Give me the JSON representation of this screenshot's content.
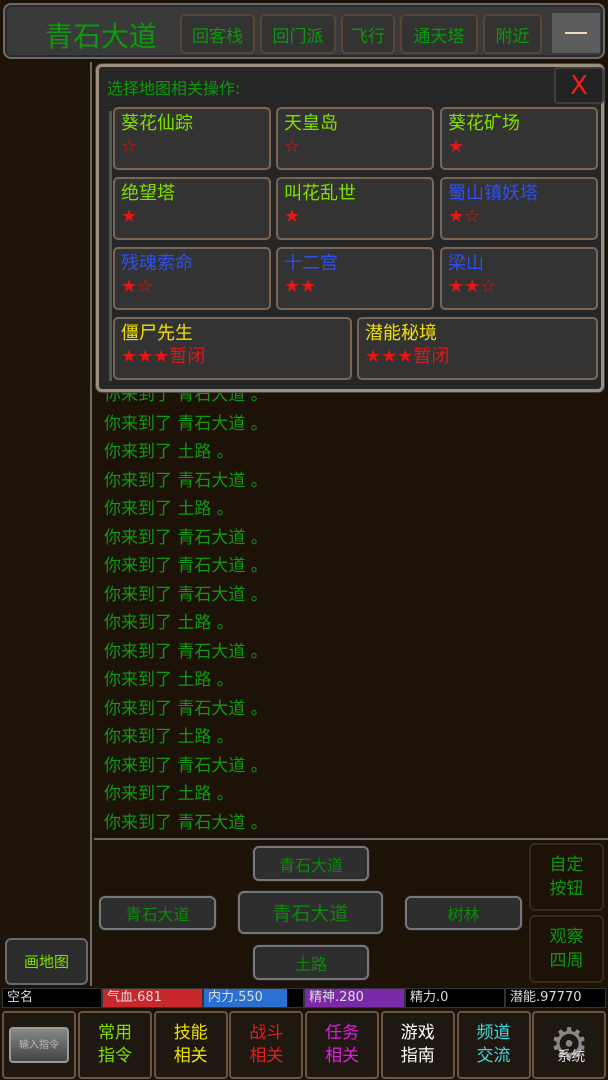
{
  "header": {
    "title": "青石大道",
    "buttons": [
      "回客栈",
      "回门派",
      "飞行",
      "通天塔",
      "附近"
    ],
    "minimize_icon": "minus-icon"
  },
  "log": {
    "lines": [
      "你来到了 青石大道 。",
      "你来到了 青石大道 。",
      "你来到了 土路 。",
      "你来到了 青石大道 。",
      "你来到了 土路 。",
      "你来到了 青石大道 。",
      "你来到了 青石大道 。",
      "你来到了 青石大道 。",
      "你来到了 土路 。",
      "你来到了 青石大道 。",
      "你来到了 土路 。",
      "你来到了 青石大道 。",
      "你来到了 土路 。",
      "你来到了 青石大道 。",
      "你来到了 土路 。",
      "你来到了 青石大道 。"
    ],
    "color": "#109a10"
  },
  "dialog": {
    "title": "选择地图相关操作:",
    "close_label": "X",
    "maps": [
      {
        "name": "葵花仙踪",
        "stars": "☆",
        "color": "#7fe000"
      },
      {
        "name": "天皇岛",
        "stars": "☆",
        "color": "#7fe000"
      },
      {
        "name": "葵花矿场",
        "stars": "★",
        "color": "#7fe000"
      },
      {
        "name": "绝望塔",
        "stars": "★",
        "color": "#7fe000"
      },
      {
        "name": "叫花乱世",
        "stars": "★",
        "color": "#7fe000"
      },
      {
        "name": "蜀山镇妖塔",
        "stars": "★☆",
        "color": "#3050f0"
      },
      {
        "name": "残魂索命",
        "stars": "★☆",
        "color": "#3050f0"
      },
      {
        "name": "十二宫",
        "stars": "★★",
        "color": "#3050f0"
      },
      {
        "name": "梁山",
        "stars": "★★☆",
        "color": "#3050f0"
      },
      {
        "name": "僵尸先生",
        "stars": "★★★暂闭",
        "color": "#f0e000"
      },
      {
        "name": "潜能秘境",
        "stars": "★★★暂闭",
        "color": "#f0e000"
      }
    ]
  },
  "navigation": {
    "north": "青石大道",
    "west": "青石大道",
    "center": "青石大道",
    "east": "树林",
    "south": "土路"
  },
  "side_buttons": {
    "custom": "自定\n按钮",
    "look": "观察\n四周",
    "draw_map": "画地图"
  },
  "status": {
    "name": "空名",
    "hp": "气血.681",
    "mp": "内力.550",
    "mp_fill_percent": 84,
    "spirit": "精神.280",
    "energy": "精力.0",
    "potential": "潜能.97770",
    "colors": {
      "hp": "#c8282c",
      "mp": "#2a70d0",
      "spirit": "#7a2aa8"
    }
  },
  "bottom_bar": {
    "input_label": "输入指令",
    "items": [
      {
        "label": "常用\n指令",
        "color": "#7fe000"
      },
      {
        "label": "技能\n相关",
        "color": "#f0e000"
      },
      {
        "label": "战斗\n相关",
        "color": "#e02020"
      },
      {
        "label": "任务\n相关",
        "color": "#e020e0"
      },
      {
        "label": "游戏\n指南",
        "color": "#ffffff"
      },
      {
        "label": "频道\n交流",
        "color": "#40d8e0"
      }
    ],
    "system_label": "系统"
  }
}
